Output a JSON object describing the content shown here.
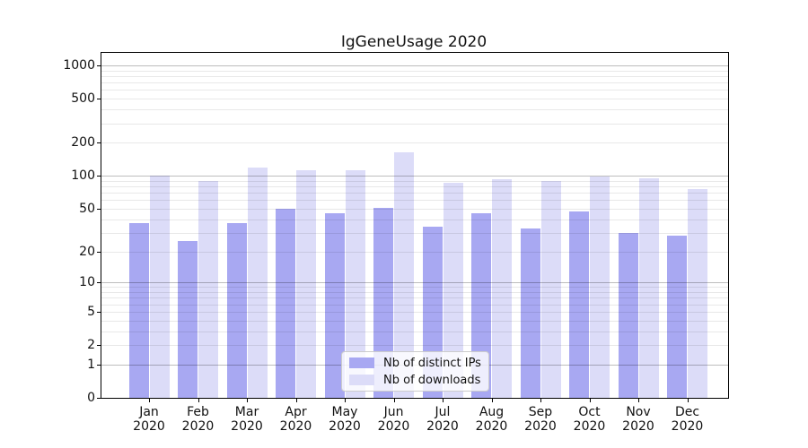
{
  "title": "IgGeneUsage 2020",
  "chart_data": {
    "type": "bar",
    "title": "IgGeneUsage 2020",
    "x_tick_labels_line1": [
      "Jan",
      "Feb",
      "Mar",
      "Apr",
      "May",
      "Jun",
      "Jul",
      "Aug",
      "Sep",
      "Oct",
      "Nov",
      "Dec"
    ],
    "x_tick_labels_line2": "2020",
    "series": [
      {
        "name": "Nb of distinct IPs",
        "color": "#a8a8f2",
        "values": [
          37,
          25,
          37,
          50,
          45,
          51,
          34,
          45,
          33,
          47,
          30,
          28
        ]
      },
      {
        "name": "Nb of downloads",
        "color": "#dcdcf8",
        "values": [
          100,
          90,
          119,
          113,
          113,
          163,
          86,
          93,
          90,
          98,
          95,
          75
        ]
      }
    ],
    "y_ticks": [
      0,
      1,
      2,
      5,
      10,
      20,
      50,
      100,
      200,
      500,
      1000
    ],
    "y_scale": "log10(1+x)",
    "ylim": [
      0,
      1300
    ],
    "grid": true,
    "major_gridlines": [
      1,
      10,
      100,
      1000
    ],
    "legend_position": "bottom-center"
  },
  "colors": {
    "bar_ips": "#a8a8f2",
    "bar_downloads": "#dcdcf8",
    "major_grid": "#bdbdbd",
    "minor_grid": "#e8e8e8",
    "spine": "#000000",
    "legend_border": "#cccccc",
    "background": "#ffffff"
  }
}
